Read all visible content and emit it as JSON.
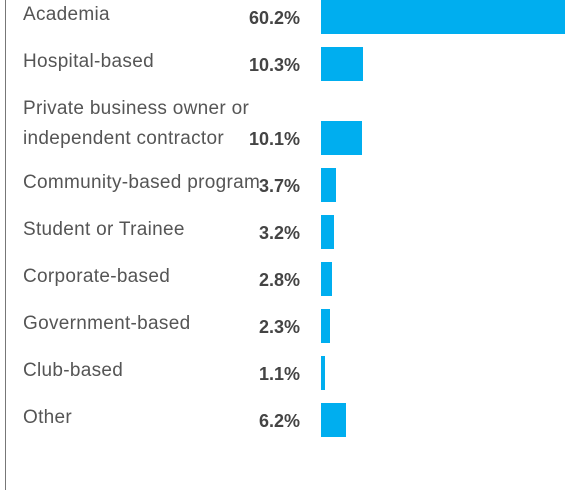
{
  "chart_data": {
    "type": "bar",
    "orientation": "horizontal",
    "categories": [
      "Academia",
      "Hospital-based",
      "Private business owner or independent contractor",
      "Community-based program",
      "Student or Trainee",
      "Corporate-based",
      "Government-based",
      "Club-based",
      "Other"
    ],
    "values": [
      60.2,
      10.3,
      10.1,
      3.7,
      3.2,
      2.8,
      2.3,
      1.1,
      6.2
    ],
    "value_labels": [
      "60.2%",
      "10.3%",
      "10.1%",
      "3.7%",
      "3.2%",
      "2.8%",
      "2.3%",
      "1.1%",
      "6.2%"
    ],
    "color": "#00aeef"
  }
}
